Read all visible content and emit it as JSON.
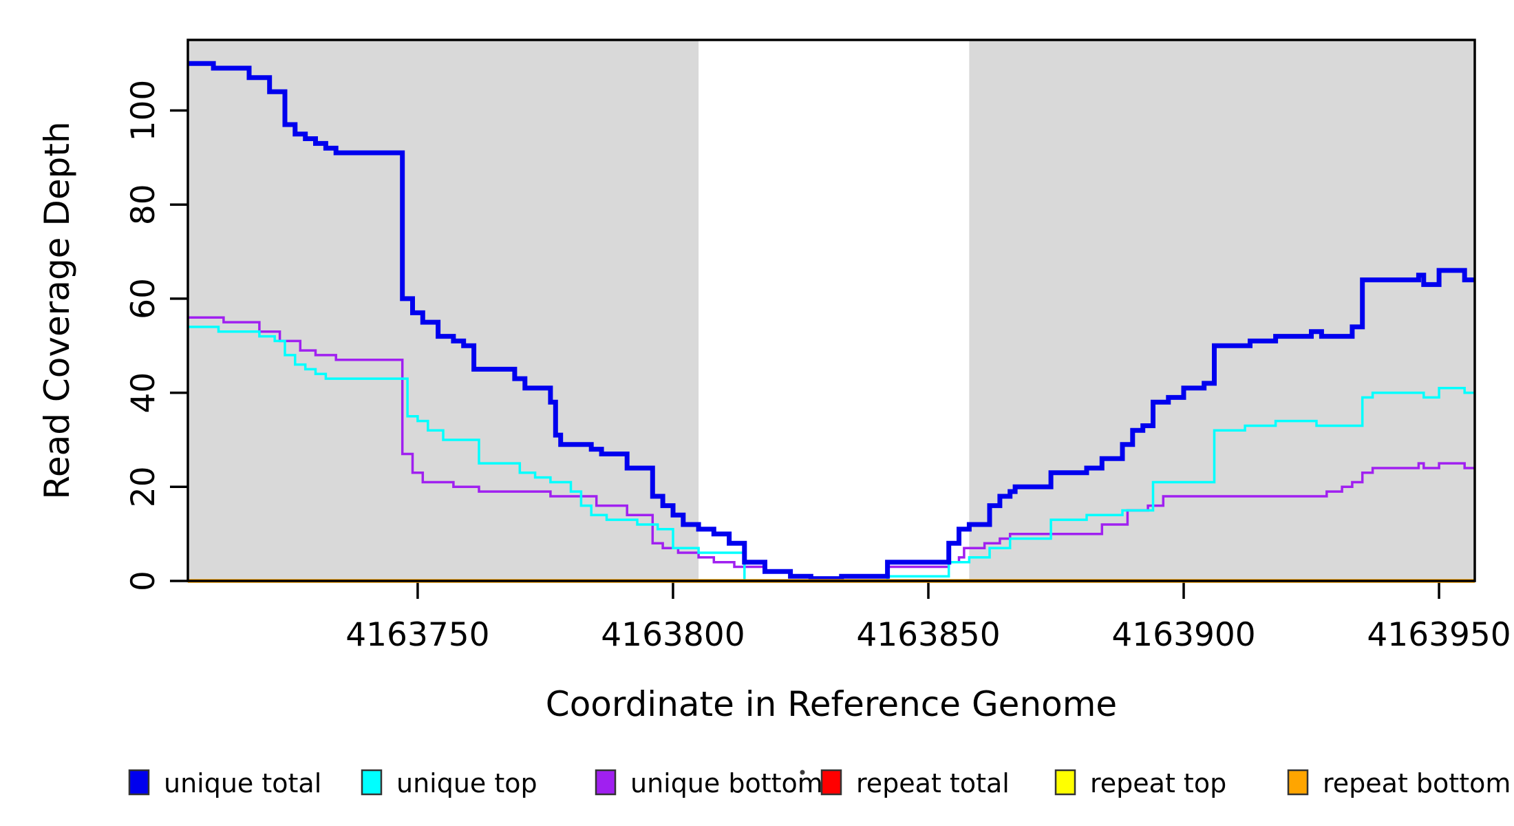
{
  "figure": {
    "background": "#FFFFFF",
    "shade_color": "#D9D9D9",
    "frame_color": "#000000",
    "text_color": "#000000",
    "has_stray_dot": true
  },
  "chart_data": {
    "type": "line",
    "subtype": "step",
    "title": "",
    "xlabel": "Coordinate in Reference Genome",
    "ylabel": "Read Coverage Depth",
    "xlim": [
      4163705,
      4163957
    ],
    "ylim": [
      0,
      115
    ],
    "x_ticks": [
      4163750,
      4163800,
      4163850,
      4163900,
      4163950
    ],
    "y_ticks": [
      0,
      20,
      40,
      60,
      80,
      100
    ],
    "grid": false,
    "legend_position": "bottom",
    "shaded_regions": [
      {
        "from": 4163705,
        "to": 4163805,
        "color": "#D9D9D9",
        "name": "left unique region"
      },
      {
        "from": 4163858,
        "to": 4163957,
        "color": "#D9D9D9",
        "name": "right unique region"
      }
    ],
    "series": [
      {
        "name": "repeat total",
        "color": "#FF0000",
        "line_width": 3.5,
        "points": [
          [
            4163705,
            0
          ],
          [
            4163957,
            0
          ]
        ]
      },
      {
        "name": "repeat top",
        "color": "#FFFF00",
        "line_width": 3.5,
        "points": [
          [
            4163705,
            0
          ],
          [
            4163957,
            0
          ]
        ]
      },
      {
        "name": "unique bottom",
        "color": "#A020F0",
        "line_width": 3.5,
        "points": [
          [
            4163705,
            56
          ],
          [
            4163712,
            55
          ],
          [
            4163719,
            53
          ],
          [
            4163723,
            51
          ],
          [
            4163727,
            49
          ],
          [
            4163730,
            48
          ],
          [
            4163734,
            47
          ],
          [
            4163747,
            27
          ],
          [
            4163749,
            23
          ],
          [
            4163751,
            21
          ],
          [
            4163757,
            20
          ],
          [
            4163762,
            19
          ],
          [
            4163776,
            18
          ],
          [
            4163785,
            16
          ],
          [
            4163791,
            14
          ],
          [
            4163796,
            8
          ],
          [
            4163798,
            7
          ],
          [
            4163801,
            6
          ],
          [
            4163805,
            5
          ],
          [
            4163808,
            4
          ],
          [
            4163812,
            3
          ],
          [
            4163818,
            2
          ],
          [
            4163823,
            1
          ],
          [
            4163827,
            0
          ],
          [
            4163842,
            3
          ],
          [
            4163854,
            4
          ],
          [
            4163856,
            5
          ],
          [
            4163857,
            7
          ],
          [
            4163861,
            8
          ],
          [
            4163864,
            9
          ],
          [
            4163866,
            10
          ],
          [
            4163884,
            12
          ],
          [
            4163889,
            15
          ],
          [
            4163893,
            16
          ],
          [
            4163896,
            18
          ],
          [
            4163928,
            19
          ],
          [
            4163931,
            20
          ],
          [
            4163933,
            21
          ],
          [
            4163935,
            23
          ],
          [
            4163937,
            24
          ],
          [
            4163946,
            25
          ],
          [
            4163947,
            24
          ],
          [
            4163950,
            25
          ],
          [
            4163955,
            24
          ],
          [
            4163957,
            24
          ]
        ]
      },
      {
        "name": "unique top",
        "color": "#00FFFF",
        "line_width": 3.5,
        "points": [
          [
            4163705,
            54
          ],
          [
            4163711,
            53
          ],
          [
            4163719,
            52
          ],
          [
            4163722,
            51
          ],
          [
            4163724,
            48
          ],
          [
            4163726,
            46
          ],
          [
            4163728,
            45
          ],
          [
            4163730,
            44
          ],
          [
            4163732,
            43
          ],
          [
            4163748,
            35
          ],
          [
            4163750,
            34
          ],
          [
            4163752,
            32
          ],
          [
            4163755,
            30
          ],
          [
            4163762,
            25
          ],
          [
            4163770,
            23
          ],
          [
            4163773,
            22
          ],
          [
            4163776,
            21
          ],
          [
            4163780,
            19
          ],
          [
            4163782,
            16
          ],
          [
            4163784,
            14
          ],
          [
            4163787,
            13
          ],
          [
            4163793,
            12
          ],
          [
            4163797,
            11
          ],
          [
            4163800,
            7
          ],
          [
            4163805,
            6
          ],
          [
            4163814,
            0
          ],
          [
            4163842,
            1
          ],
          [
            4163854,
            4
          ],
          [
            4163858,
            5
          ],
          [
            4163862,
            7
          ],
          [
            4163866,
            9
          ],
          [
            4163874,
            13
          ],
          [
            4163881,
            14
          ],
          [
            4163888,
            15
          ],
          [
            4163894,
            21
          ],
          [
            4163906,
            32
          ],
          [
            4163912,
            33
          ],
          [
            4163918,
            34
          ],
          [
            4163926,
            33
          ],
          [
            4163935,
            39
          ],
          [
            4163937,
            40
          ],
          [
            4163947,
            39
          ],
          [
            4163950,
            41
          ],
          [
            4163955,
            40
          ],
          [
            4163957,
            40
          ]
        ]
      },
      {
        "name": "unique total",
        "color": "#0000EE",
        "line_width": 7,
        "points": [
          [
            4163705,
            110
          ],
          [
            4163710,
            109
          ],
          [
            4163717,
            107
          ],
          [
            4163721,
            104
          ],
          [
            4163724,
            97
          ],
          [
            4163726,
            95
          ],
          [
            4163728,
            94
          ],
          [
            4163730,
            93
          ],
          [
            4163732,
            92
          ],
          [
            4163734,
            91
          ],
          [
            4163747,
            60
          ],
          [
            4163749,
            57
          ],
          [
            4163751,
            55
          ],
          [
            4163754,
            52
          ],
          [
            4163757,
            51
          ],
          [
            4163759,
            50
          ],
          [
            4163761,
            45
          ],
          [
            4163769,
            43
          ],
          [
            4163771,
            41
          ],
          [
            4163776,
            38
          ],
          [
            4163777,
            31
          ],
          [
            4163778,
            29
          ],
          [
            4163784,
            28
          ],
          [
            4163786,
            27
          ],
          [
            4163791,
            24
          ],
          [
            4163796,
            18
          ],
          [
            4163798,
            16
          ],
          [
            4163800,
            14
          ],
          [
            4163802,
            12
          ],
          [
            4163805,
            11
          ],
          [
            4163808,
            10
          ],
          [
            4163811,
            8
          ],
          [
            4163814,
            4
          ],
          [
            4163818,
            2
          ],
          [
            4163823,
            1
          ],
          [
            4163827,
            0.5
          ],
          [
            4163833,
            1
          ],
          [
            4163842,
            4
          ],
          [
            4163854,
            8
          ],
          [
            4163856,
            11
          ],
          [
            4163858,
            12
          ],
          [
            4163862,
            16
          ],
          [
            4163864,
            18
          ],
          [
            4163866,
            19
          ],
          [
            4163867,
            20
          ],
          [
            4163874,
            23
          ],
          [
            4163881,
            24
          ],
          [
            4163884,
            26
          ],
          [
            4163888,
            29
          ],
          [
            4163890,
            32
          ],
          [
            4163892,
            33
          ],
          [
            4163894,
            38
          ],
          [
            4163897,
            39
          ],
          [
            4163900,
            41
          ],
          [
            4163904,
            42
          ],
          [
            4163906,
            50
          ],
          [
            4163913,
            51
          ],
          [
            4163918,
            52
          ],
          [
            4163925,
            53
          ],
          [
            4163927,
            52
          ],
          [
            4163933,
            54
          ],
          [
            4163935,
            64
          ],
          [
            4163946,
            65
          ],
          [
            4163947,
            63
          ],
          [
            4163950,
            66
          ],
          [
            4163955,
            64
          ],
          [
            4163957,
            64
          ]
        ]
      },
      {
        "name": "repeat bottom",
        "color": "#FFA500",
        "line_width": 5.5,
        "points": [
          [
            4163705,
            0
          ],
          [
            4163957,
            0
          ]
        ]
      }
    ],
    "legend": {
      "entries": [
        {
          "label": "unique total",
          "color": "#0000EE"
        },
        {
          "label": "unique top",
          "color": "#00FFFF"
        },
        {
          "label": "unique bottom",
          "color": "#A020F0"
        },
        {
          "label": "repeat total",
          "color": "#FF0000"
        },
        {
          "label": "repeat top",
          "color": "#FFFF00"
        },
        {
          "label": "repeat bottom",
          "color": "#FFA500"
        }
      ]
    }
  }
}
